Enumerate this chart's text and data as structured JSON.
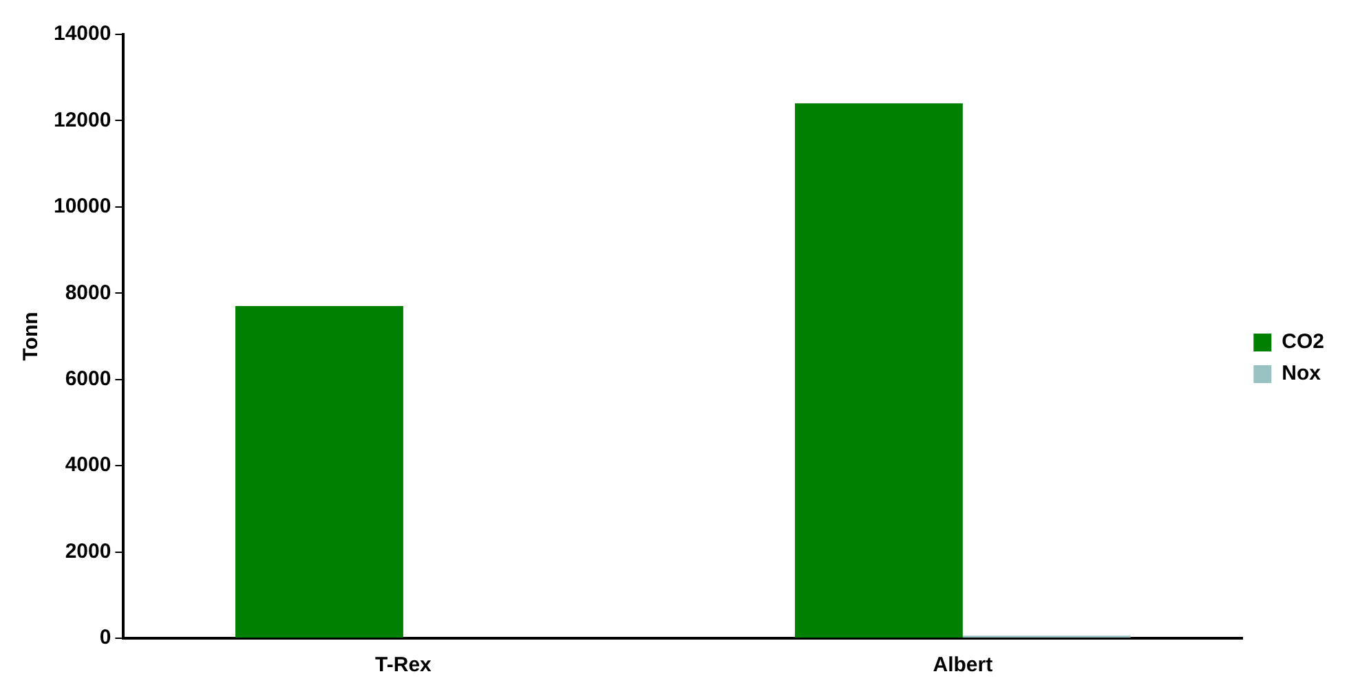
{
  "chart_data": {
    "type": "bar",
    "ylabel": "Tonn",
    "categories": [
      "T-Rex",
      "Albert"
    ],
    "series": [
      {
        "name": "CO2",
        "color": "#008000",
        "values": [
          7700,
          12400
        ]
      },
      {
        "name": "Nox",
        "color": "#99c2c2",
        "values": [
          null,
          60
        ]
      }
    ],
    "ylim": [
      0,
      14000
    ],
    "yticks": [
      0,
      2000,
      4000,
      6000,
      8000,
      10000,
      12000,
      14000
    ],
    "grid": false,
    "legend": "right"
  }
}
